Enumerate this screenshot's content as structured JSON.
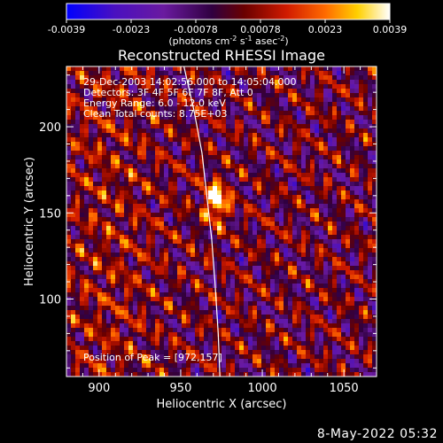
{
  "chart_data": {
    "type": "heatmap",
    "title": "Reconstructed RHESSI Image",
    "xlabel": "Heliocentric X (arcsec)",
    "ylabel": "Heliocentric Y (arcsec)",
    "xlim": [
      880,
      1070
    ],
    "ylim": [
      55,
      235
    ],
    "x_ticks": [
      900,
      950,
      1000,
      1050
    ],
    "y_ticks": [
      100,
      150,
      200
    ],
    "colorbar": {
      "min": -0.0039,
      "max": 0.0039,
      "ticks": [
        "-0.0039",
        "-0.0023",
        "-0.00078",
        "0.00078",
        "0.0023",
        "0.0039"
      ],
      "units_text": "(photons cm",
      "units_exp1": "-2",
      "units_mid1": " s",
      "units_exp2": "-1",
      "units_mid2": " asec",
      "units_exp3": "-2",
      "units_end": ")"
    },
    "annotations": [
      "29-Dec-2003 14:02:56.000 to 14:05:04.000",
      "Detectors: 3F 4F 5F 6F 7F 8F, Att 0",
      "Energy Range: 6.0 - 12.0 keV",
      "Clean     Total counts: 8.75E+03"
    ],
    "peak_label": "Position of Peak = [972,157]",
    "peak": [
      972,
      157
    ],
    "limb": [
      [
        952,
        235
      ],
      [
        958,
        210
      ],
      [
        963,
        185
      ],
      [
        966,
        160
      ],
      [
        969,
        135
      ],
      [
        971,
        110
      ],
      [
        973,
        80
      ],
      [
        974,
        55
      ]
    ],
    "colors": {
      "background": "#000000",
      "limb": "#ffffff",
      "colormap": [
        "#0000ff",
        "#6a1aa0",
        "#2a0050",
        "#b01010",
        "#ff5a00",
        "#ffd800",
        "#ffffff"
      ]
    }
  },
  "footer": {
    "date": "8-May-2022 05:32"
  }
}
